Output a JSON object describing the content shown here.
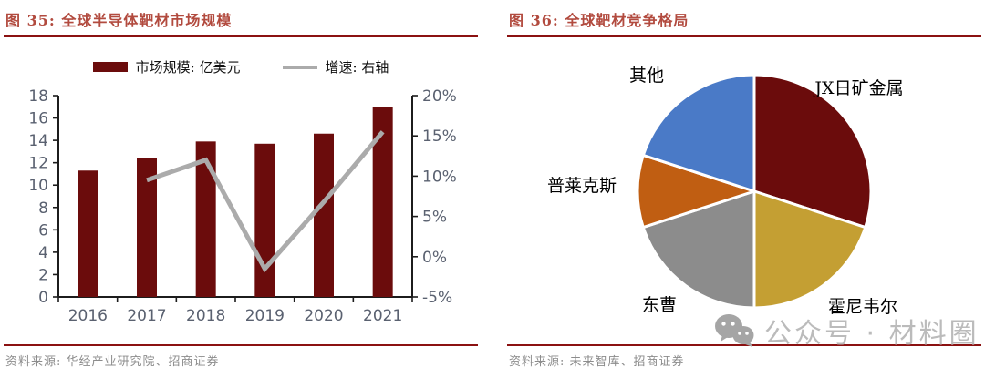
{
  "chart_data": [
    {
      "id": "global-semiconductor-target-market",
      "type": "bar",
      "title": "图 35: 全球半导体靶材市场规模",
      "source": "资料来源: 华经产业研究院、招商证券",
      "categories": [
        "2016",
        "2017",
        "2018",
        "2019",
        "2020",
        "2021"
      ],
      "series": [
        {
          "name": "市场规模: 亿美元",
          "type": "bar",
          "axis": "left",
          "color": "#6B0C0C",
          "values": [
            11.3,
            12.4,
            13.9,
            13.7,
            14.6,
            17.0
          ]
        },
        {
          "name": "增速: 右轴",
          "type": "line",
          "axis": "right",
          "color": "#ABABAB",
          "values": [
            null,
            9.5,
            12.0,
            -1.5,
            6.8,
            15.5
          ]
        }
      ],
      "left_axis": {
        "min": 0,
        "max": 18,
        "ticks": [
          "18",
          "16",
          "14",
          "12",
          "10",
          "8",
          "6",
          "4",
          "2",
          "0"
        ]
      },
      "right_axis": {
        "min": -5,
        "max": 20,
        "ticks": [
          "20%",
          "15%",
          "10%",
          "5%",
          "0%",
          "-5%"
        ]
      },
      "grid": false,
      "legend_position": "top"
    },
    {
      "id": "global-target-competitive-landscape",
      "type": "pie",
      "title": "图 36: 全球靶材竞争格局",
      "source": "资料来源: 未来智库、招商证券",
      "start_angle_deg": 0,
      "direction": "clockwise",
      "slices": [
        {
          "label": "JX日矿金属",
          "value": 30,
          "color": "#6B0C0C"
        },
        {
          "label": "霍尼韦尔",
          "value": 20,
          "color": "#C49F33"
        },
        {
          "label": "东曹",
          "value": 20,
          "color": "#8C8C8C"
        },
        {
          "label": "普莱克斯",
          "value": 10,
          "color": "#C05E12"
        },
        {
          "label": "其他",
          "value": 20,
          "color": "#4A7AC7"
        }
      ]
    }
  ],
  "watermark": {
    "text": "公众号 · 材料圈",
    "icon": "wechat-icon",
    "color": "#BBBBBB"
  },
  "colors": {
    "title_red": "#B24B3F",
    "rule_dark_red": "#8B1111",
    "bar_maroon": "#6B0C0C",
    "growth_line_gray": "#ABABAB",
    "axis_text": "#5A6170",
    "axis_line": "#1C1C1C",
    "source_gray": "#8C8C8C"
  }
}
